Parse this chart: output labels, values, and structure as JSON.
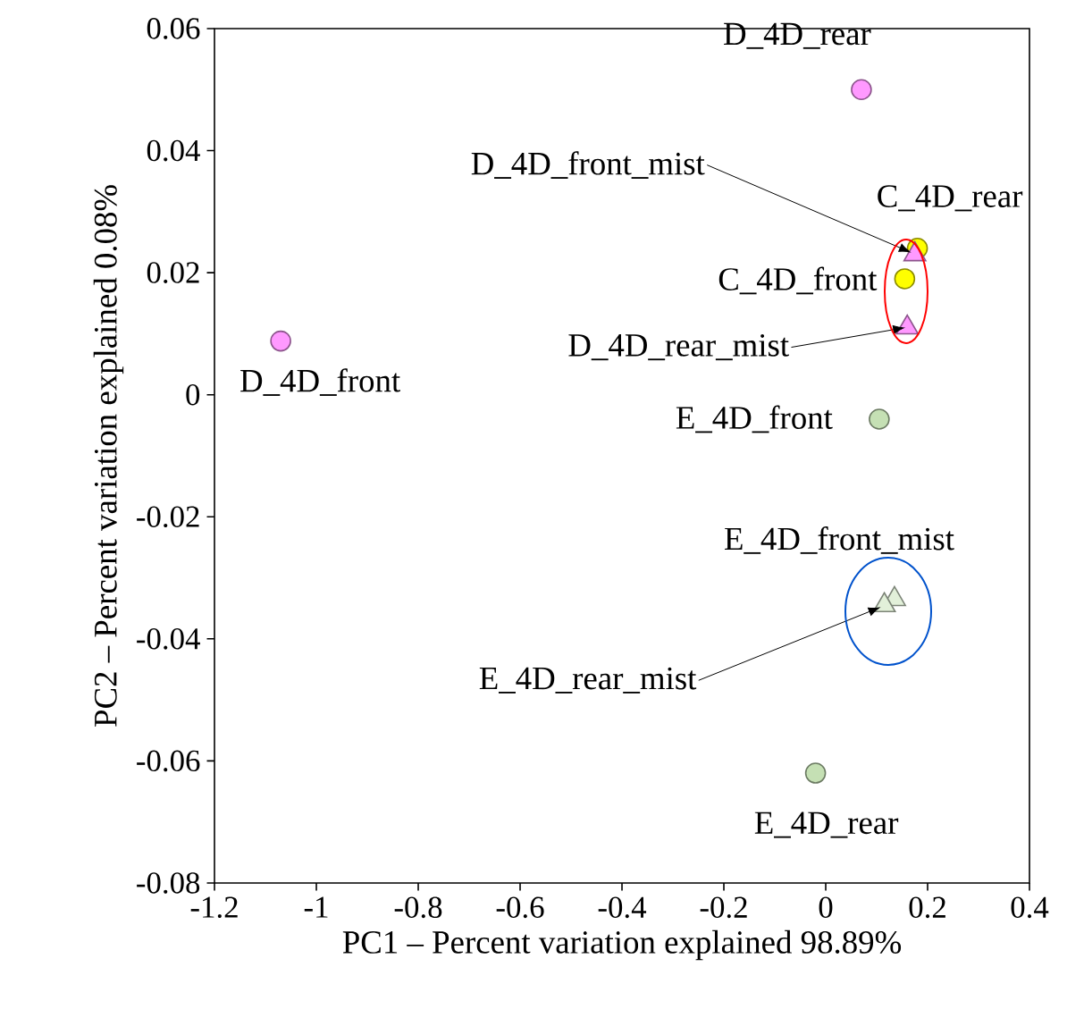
{
  "chart_data": {
    "type": "scatter",
    "xlabel": "PC1 – Percent variation explained 98.89%",
    "ylabel": "PC2 – Percent variation explained 0.08%",
    "xlim": [
      -1.2,
      0.4
    ],
    "xticks": [
      -1.2,
      -1,
      -0.8,
      -0.6,
      -0.4,
      -0.2,
      0,
      0.2,
      0.4
    ],
    "ylim": [
      -0.08,
      0.06
    ],
    "yticks": [
      -0.08,
      -0.06,
      -0.04,
      -0.02,
      0,
      0.02,
      0.04,
      0.06
    ],
    "series": [
      {
        "x": [
          0.07,
          -1.07
        ],
        "values": [
          0.05,
          0.0088
        ],
        "color": "#ff99ff",
        "marker": "circle"
      },
      {
        "x": [
          0.18,
          0.155
        ],
        "values": [
          0.024,
          0.019
        ],
        "color": "#ffff00",
        "marker": "circle"
      },
      {
        "x": [
          0.175,
          0.16
        ],
        "values": [
          0.023,
          0.011
        ],
        "color": "#ff99ff",
        "marker": "triangle"
      },
      {
        "x": [
          0.105,
          -0.02
        ],
        "values": [
          -0.004,
          -0.062
        ],
        "color": "#c5e0b4",
        "marker": "circle"
      },
      {
        "x": [
          0.135,
          0.115
        ],
        "values": [
          -0.0335,
          -0.0345
        ],
        "color": "#e2f0d9",
        "marker": "triangle"
      }
    ],
    "annotations": [
      {
        "text": "D_4D_rear",
        "x": 0.07,
        "y": 0.05
      },
      {
        "text": "D_4D_front",
        "x": -1.07,
        "y": 0.0088
      },
      {
        "text": "C_4D_rear",
        "x": 0.18,
        "y": 0.024
      },
      {
        "text": "D_4D_front_mist",
        "x": 0.175,
        "y": 0.023
      },
      {
        "text": "C_4D_front",
        "x": 0.155,
        "y": 0.019
      },
      {
        "text": "D_4D_rear_mist",
        "x": 0.16,
        "y": 0.011
      },
      {
        "text": "E_4D_front",
        "x": 0.105,
        "y": -0.004
      },
      {
        "text": "E_4D_front_mist",
        "x": 0.135,
        "y": -0.0335
      },
      {
        "text": "E_4D_rear_mist",
        "x": 0.115,
        "y": -0.0345
      },
      {
        "text": "E_4D_rear",
        "x": -0.02,
        "y": -0.062
      }
    ]
  }
}
